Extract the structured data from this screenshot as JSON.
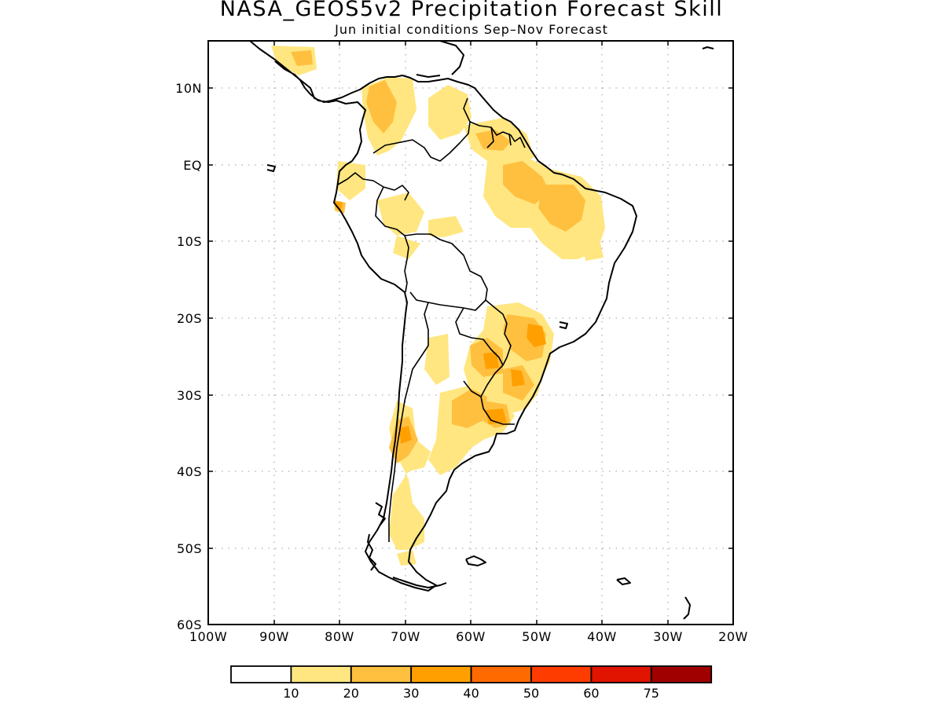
{
  "title": "NASA_GEOS5v2 Precipitation Forecast Skill",
  "subtitle": "Jun initial conditions  Sep–Nov Forecast",
  "x_ticks": [
    "100W",
    "90W",
    "80W",
    "70W",
    "60W",
    "50W",
    "40W",
    "30W",
    "20W"
  ],
  "y_ticks": [
    "10N",
    "EQ",
    "10S",
    "20S",
    "30S",
    "40S",
    "50S",
    "60S"
  ],
  "colorbar": {
    "labels": [
      "10",
      "20",
      "30",
      "40",
      "50",
      "60",
      "75"
    ],
    "colors": [
      "#ffffff",
      "#ffe680",
      "#ffc040",
      "#ffa000",
      "#ff6a00",
      "#ff3c00",
      "#e01400",
      "#a00000"
    ]
  },
  "colors": {
    "coast": "#000000",
    "grid": "#999999",
    "land": "#ffffff"
  }
}
